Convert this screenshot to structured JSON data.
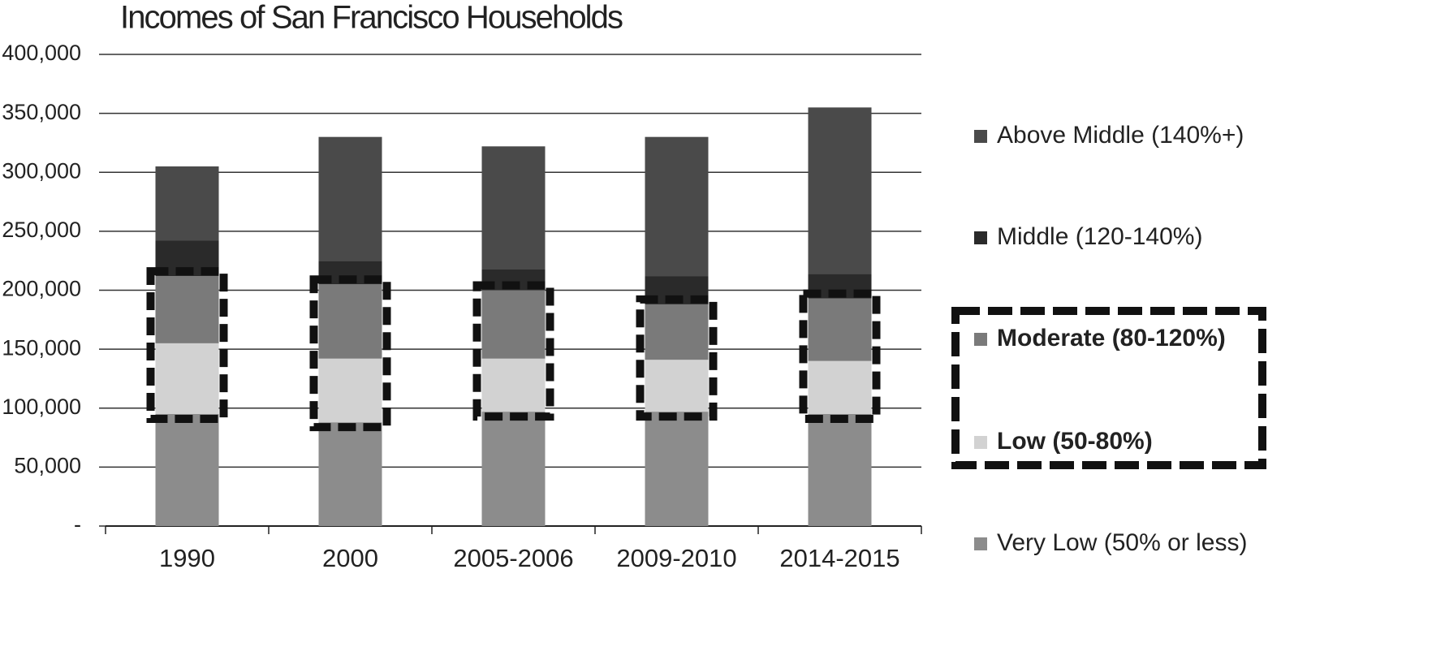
{
  "chart_data": {
    "type": "stacked_bar",
    "title": "Incomes of San Francisco Households",
    "categories": [
      "1990",
      "2000",
      "2005-2006",
      "2009-2010",
      "2014-2015"
    ],
    "series": [
      {
        "name": "Very Low (50% or less)",
        "color": "#8c8c8c",
        "values": [
          95000,
          88000,
          97000,
          97000,
          95000
        ]
      },
      {
        "name": "Low (50-80%)",
        "color": "#d2d2d2",
        "values": [
          60000,
          54000,
          45000,
          44000,
          45000
        ]
      },
      {
        "name": "Moderate (80-120%)",
        "color": "#7a7a7a",
        "values": [
          57000,
          63000,
          58000,
          47000,
          53000
        ]
      },
      {
        "name": "Middle (120-140%)",
        "color": "#2a2a2a",
        "values": [
          30000,
          20000,
          18000,
          24000,
          21000
        ]
      },
      {
        "name": "Above Middle (140%+)",
        "color": "#4a4a4a",
        "values": [
          63000,
          105000,
          104000,
          118000,
          141000
        ]
      }
    ],
    "ylim": [
      0,
      400000
    ],
    "yticks": [
      {
        "value": 0,
        "label": "-"
      },
      {
        "value": 50000,
        "label": "50,000"
      },
      {
        "value": 100000,
        "label": "100,000"
      },
      {
        "value": 150000,
        "label": "150,000"
      },
      {
        "value": 200000,
        "label": "200,000"
      },
      {
        "value": 250000,
        "label": "250,000"
      },
      {
        "value": 300000,
        "label": "300,000"
      },
      {
        "value": 350000,
        "label": "350,000"
      },
      {
        "value": 400000,
        "label": "400,000"
      }
    ],
    "grid": true
  }
}
